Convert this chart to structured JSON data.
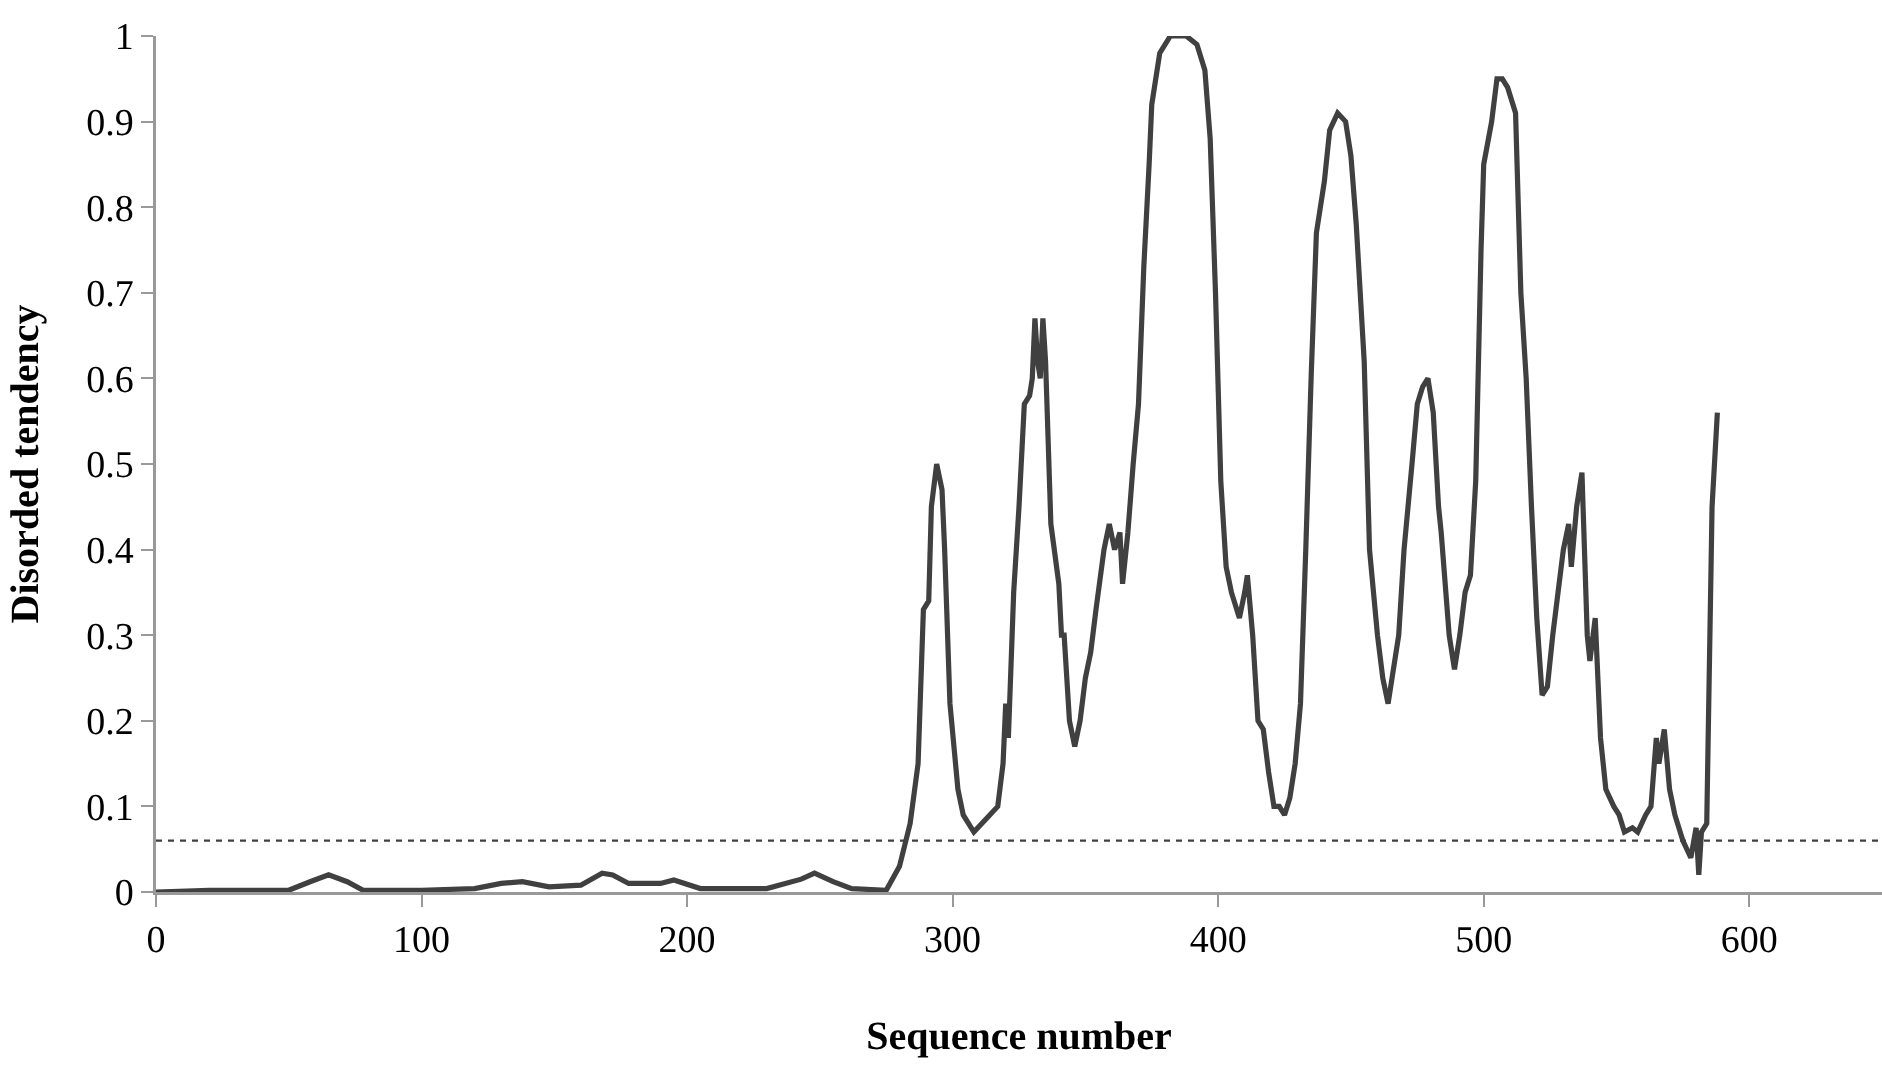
{
  "chart_data": {
    "type": "line",
    "xlabel": "Sequence number",
    "ylabel": "Disorded tendency",
    "x": [
      0,
      20,
      50,
      58,
      65,
      72,
      78,
      100,
      120,
      130,
      138,
      148,
      160,
      168,
      172,
      178,
      190,
      195,
      205,
      230,
      243,
      248,
      255,
      262,
      275,
      280,
      284,
      287,
      289,
      291,
      292,
      294,
      296,
      297,
      299,
      302,
      304,
      308,
      311,
      314,
      317,
      319,
      320,
      321,
      323,
      325,
      327,
      329,
      330,
      331,
      332,
      333,
      334,
      335,
      337,
      340,
      341,
      342,
      344,
      346,
      348,
      350,
      352,
      354,
      357,
      359,
      361,
      363,
      364,
      366,
      368,
      370,
      372,
      374,
      375,
      378,
      382,
      388,
      392,
      395,
      397,
      399,
      401,
      403,
      405,
      408,
      410,
      411,
      413,
      415,
      417,
      419,
      421,
      423,
      425,
      427,
      429,
      431,
      433,
      435,
      437,
      440,
      442,
      445,
      448,
      450,
      452,
      455,
      457,
      460,
      462,
      464,
      466,
      468,
      470,
      473,
      475,
      477,
      479,
      481,
      483,
      484,
      487,
      489,
      491,
      493,
      495,
      497,
      499,
      500,
      503,
      505,
      507,
      509,
      512,
      514,
      516,
      518,
      520,
      522,
      524,
      526,
      528,
      530,
      532,
      533,
      535,
      537,
      539,
      540,
      542,
      544,
      546,
      549,
      551,
      553,
      556,
      558,
      561,
      563,
      565,
      566,
      568,
      570,
      572,
      575,
      578,
      580,
      581,
      582,
      584,
      586,
      588
    ],
    "series": [
      {
        "color": "#404040",
        "values": [
          0,
          0.002,
          0.002,
          0.012,
          0.02,
          0.012,
          0.002,
          0.002,
          0.004,
          0.01,
          0.012,
          0.006,
          0.008,
          0.022,
          0.02,
          0.01,
          0.01,
          0.014,
          0.004,
          0.004,
          0.015,
          0.022,
          0.012,
          0.004,
          0.002,
          0.03,
          0.08,
          0.15,
          0.33,
          0.34,
          0.45,
          0.5,
          0.47,
          0.4,
          0.22,
          0.12,
          0.09,
          0.07,
          0.08,
          0.09,
          0.1,
          0.15,
          0.22,
          0.18,
          0.35,
          0.45,
          0.57,
          0.58,
          0.6,
          0.67,
          0.62,
          0.6,
          0.67,
          0.62,
          0.43,
          0.36,
          0.3,
          0.3,
          0.2,
          0.17,
          0.2,
          0.25,
          0.28,
          0.33,
          0.4,
          0.43,
          0.4,
          0.42,
          0.36,
          0.42,
          0.5,
          0.57,
          0.73,
          0.85,
          0.92,
          0.98,
          1,
          1,
          0.99,
          0.96,
          0.88,
          0.7,
          0.48,
          0.38,
          0.35,
          0.32,
          0.35,
          0.37,
          0.3,
          0.2,
          0.19,
          0.14,
          0.1,
          0.1,
          0.09,
          0.11,
          0.15,
          0.22,
          0.4,
          0.6,
          0.77,
          0.83,
          0.89,
          0.91,
          0.9,
          0.86,
          0.78,
          0.62,
          0.4,
          0.3,
          0.25,
          0.22,
          0.26,
          0.3,
          0.4,
          0.5,
          0.57,
          0.59,
          0.6,
          0.56,
          0.45,
          0.42,
          0.3,
          0.26,
          0.3,
          0.35,
          0.37,
          0.48,
          0.75,
          0.85,
          0.9,
          0.95,
          0.95,
          0.94,
          0.91,
          0.7,
          0.6,
          0.45,
          0.32,
          0.23,
          0.24,
          0.3,
          0.35,
          0.4,
          0.43,
          0.38,
          0.45,
          0.49,
          0.3,
          0.27,
          0.32,
          0.18,
          0.12,
          0.1,
          0.09,
          0.07,
          0.075,
          0.07,
          0.09,
          0.1,
          0.18,
          0.15,
          0.19,
          0.12,
          0.09,
          0.06,
          0.04,
          0.075,
          0.02,
          0.07,
          0.08,
          0.45,
          0.56
        ]
      }
    ],
    "xlim": [
      0,
      650
    ],
    "xticks": [
      0,
      100,
      200,
      300,
      400,
      500,
      600
    ],
    "ylim": [
      0,
      1
    ],
    "yticks": [
      0,
      0.1,
      0.2,
      0.3,
      0.4,
      0.5,
      0.6,
      0.7,
      0.8,
      0.9,
      1
    ],
    "ref_lines": [
      {
        "axis": "y",
        "value": 0.06,
        "color": "#404040",
        "line_style": "dotted"
      }
    ],
    "grid": false,
    "marker": "none",
    "line_style": "solid"
  }
}
